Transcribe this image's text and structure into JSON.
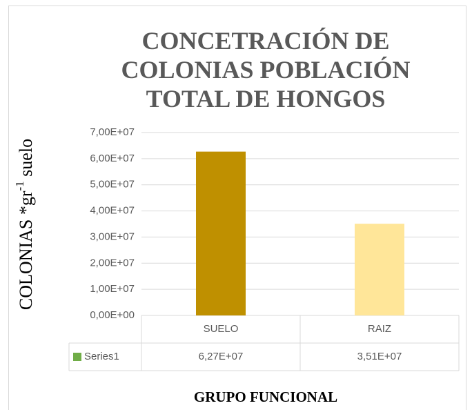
{
  "chart_data": {
    "type": "bar",
    "title": "CONCETRACIÓN DE COLONIAS POBLACIÓN TOTAL DE HONGOS",
    "ylabel": "COLONIAS *gr",
    "ylabel_sup": "-1",
    "ylabel_suffix": " suelo",
    "xlabel": "GRUPO FUNCIONAL",
    "categories": [
      "SUELO",
      "RAIZ"
    ],
    "series": [
      {
        "name": "Series1",
        "color": "#70ad47",
        "point_colors": [
          "#bf9000",
          "#ffe699"
        ],
        "values": [
          62700000,
          35100000
        ],
        "value_labels": [
          "6,27E+07",
          "3,51E+07"
        ]
      }
    ],
    "ylim": [
      0,
      70000000
    ],
    "yticks": [
      {
        "value": 0,
        "label": "0,00E+00"
      },
      {
        "value": 10000000,
        "label": "1,00E+07"
      },
      {
        "value": 20000000,
        "label": "2,00E+07"
      },
      {
        "value": 30000000,
        "label": "3,00E+07"
      },
      {
        "value": 40000000,
        "label": "4,00E+07"
      },
      {
        "value": 50000000,
        "label": "5,00E+07"
      },
      {
        "value": 60000000,
        "label": "6,00E+07"
      },
      {
        "value": 70000000,
        "label": "7,00E+07"
      }
    ],
    "grid": true,
    "data_table": true
  }
}
